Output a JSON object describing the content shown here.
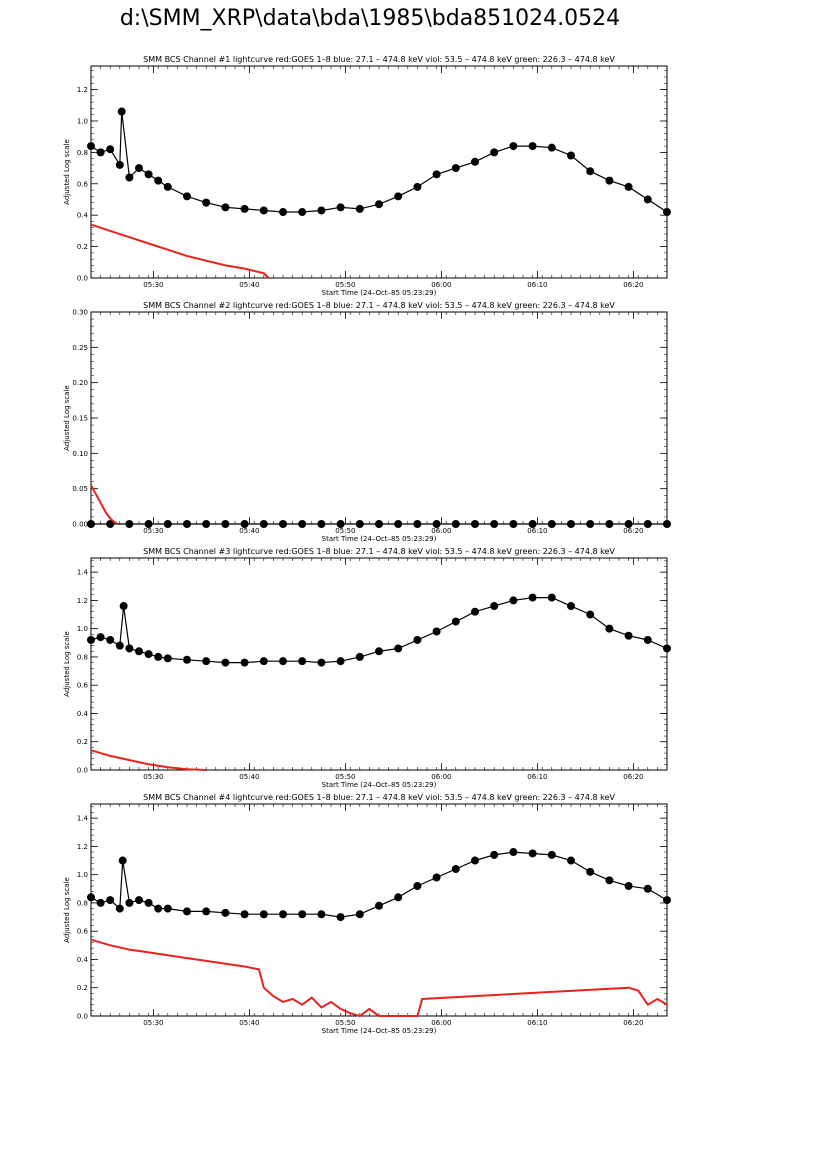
{
  "page": {
    "title": "d:\\SMM_XRP\\data\\bda\\1985\\bda851024.0524"
  },
  "colors": {
    "goes": "#e8231c",
    "data": "#000000",
    "axes": "#000000"
  },
  "chart_data": [
    {
      "type": "line",
      "title": "SMM BCS Channel #1 lightcurve  red:GOES 1–8  blue: 27.1 – 474.8 keV  viol: 53.5 – 474.8 keV  green: 226.3 – 474.8 keV",
      "xlabel": "Start Time (24–Oct–85 05:23:29)",
      "ylabel": "Adjusted Log scale",
      "x_unit": "minutes after 05:23:29",
      "xlim": [
        0,
        60
      ],
      "ylim": [
        0,
        1.35
      ],
      "x_ticks": [
        6.5,
        16.5,
        26.5,
        36.5,
        46.5,
        56.5
      ],
      "x_tick_labels": [
        "05:30",
        "05:40",
        "05:50",
        "06:00",
        "06:10",
        "06:20"
      ],
      "y_ticks": [
        0.0,
        0.2,
        0.4,
        0.6,
        0.8,
        1.0,
        1.2
      ],
      "y_tick_labels": [
        "0.0",
        "0.2",
        "0.4",
        "0.6",
        "0.8",
        "1.0",
        "1.2"
      ],
      "series": [
        {
          "style": "markers",
          "color": "#000000",
          "x": [
            0,
            1,
            2,
            3,
            3.2,
            4,
            5,
            6,
            7,
            8,
            10,
            12,
            14,
            16,
            18,
            20,
            22,
            24,
            26,
            28,
            30,
            32,
            34,
            36,
            38,
            40,
            42,
            44,
            46,
            48,
            50,
            52,
            54,
            56,
            58,
            60
          ],
          "y": [
            0.84,
            0.8,
            0.82,
            0.72,
            1.06,
            0.64,
            0.7,
            0.66,
            0.62,
            0.58,
            0.52,
            0.48,
            0.45,
            0.44,
            0.43,
            0.42,
            0.42,
            0.43,
            0.45,
            0.44,
            0.47,
            0.52,
            0.58,
            0.66,
            0.7,
            0.74,
            0.8,
            0.84,
            0.84,
            0.83,
            0.78,
            0.68,
            0.62,
            0.58,
            0.5,
            0.42
          ]
        },
        {
          "style": "line",
          "color": "#e8231c",
          "x": [
            0,
            2,
            4,
            6,
            8,
            10,
            12,
            14,
            16,
            18,
            18.5
          ],
          "y": [
            0.34,
            0.3,
            0.26,
            0.22,
            0.18,
            0.14,
            0.11,
            0.08,
            0.06,
            0.03,
            0.0
          ]
        }
      ]
    },
    {
      "type": "line",
      "title": "SMM BCS Channel #2 lightcurve  red:GOES 1–8  blue: 27.1 – 474.8 keV  viol: 53.5 – 474.8 keV  green: 226.3 – 474.8 keV",
      "xlabel": "Start Time (24–Oct–85 05:23:29)",
      "ylabel": "Adjusted Log scale",
      "x_unit": "minutes after 05:23:29",
      "xlim": [
        0,
        60
      ],
      "ylim": [
        0,
        0.3
      ],
      "x_ticks": [
        6.5,
        16.5,
        26.5,
        36.5,
        46.5,
        56.5
      ],
      "x_tick_labels": [
        "05:30",
        "05:40",
        "05:50",
        "06:00",
        "06:10",
        "06:20"
      ],
      "y_ticks": [
        0.0,
        0.05,
        0.1,
        0.15,
        0.2,
        0.25,
        0.3
      ],
      "y_tick_labels": [
        "0.00",
        "0.05",
        "0.10",
        "0.15",
        "0.20",
        "0.25",
        "0.30"
      ],
      "series": [
        {
          "style": "markers",
          "color": "#000000",
          "x": [
            0,
            2,
            4,
            6,
            8,
            10,
            12,
            14,
            16,
            18,
            20,
            22,
            24,
            26,
            28,
            30,
            32,
            34,
            36,
            38,
            40,
            42,
            44,
            46,
            48,
            50,
            52,
            54,
            56,
            58,
            60
          ],
          "y": [
            0,
            0,
            0,
            0,
            0,
            0,
            0,
            0,
            0,
            0,
            0,
            0,
            0,
            0,
            0,
            0,
            0,
            0,
            0,
            0,
            0,
            0,
            0,
            0,
            0,
            0,
            0,
            0,
            0,
            0,
            0
          ]
        },
        {
          "style": "line",
          "color": "#e8231c",
          "x": [
            0,
            0.4,
            0.8,
            1.2,
            1.6,
            2.0,
            2.4,
            2.8
          ],
          "y": [
            0.055,
            0.045,
            0.035,
            0.025,
            0.015,
            0.008,
            0.003,
            0.0
          ]
        }
      ]
    },
    {
      "type": "line",
      "title": "SMM BCS Channel #3 lightcurve  red:GOES 1–8  blue: 27.1 – 474.8 keV  viol: 53.5 – 474.8 keV  green: 226.3 – 474.8 keV",
      "xlabel": "Start Time (24–Oct–85 05:23:29)",
      "ylabel": "Adjusted Log scale",
      "x_unit": "minutes after 05:23:29",
      "xlim": [
        0,
        60
      ],
      "ylim": [
        0,
        1.5
      ],
      "x_ticks": [
        6.5,
        16.5,
        26.5,
        36.5,
        46.5,
        56.5
      ],
      "x_tick_labels": [
        "05:30",
        "05:40",
        "05:50",
        "06:00",
        "06:10",
        "06:20"
      ],
      "y_ticks": [
        0.0,
        0.2,
        0.4,
        0.6,
        0.8,
        1.0,
        1.2,
        1.4
      ],
      "y_tick_labels": [
        "0.0",
        "0.2",
        "0.4",
        "0.6",
        "0.8",
        "1.0",
        "1.2",
        "1.4"
      ],
      "series": [
        {
          "style": "markers",
          "color": "#000000",
          "x": [
            0,
            1,
            2,
            3,
            3.4,
            4,
            5,
            6,
            7,
            8,
            10,
            12,
            14,
            16,
            18,
            20,
            22,
            24,
            26,
            28,
            30,
            32,
            34,
            36,
            38,
            40,
            42,
            44,
            46,
            48,
            50,
            52,
            54,
            56,
            58,
            60
          ],
          "y": [
            0.92,
            0.94,
            0.92,
            0.88,
            1.16,
            0.86,
            0.84,
            0.82,
            0.8,
            0.79,
            0.78,
            0.77,
            0.76,
            0.76,
            0.77,
            0.77,
            0.77,
            0.76,
            0.77,
            0.8,
            0.84,
            0.86,
            0.92,
            0.98,
            1.05,
            1.12,
            1.16,
            1.2,
            1.22,
            1.22,
            1.16,
            1.1,
            1.0,
            0.95,
            0.92,
            0.86
          ]
        },
        {
          "style": "line",
          "color": "#e8231c",
          "x": [
            0,
            2,
            4,
            6,
            8,
            10,
            12
          ],
          "y": [
            0.14,
            0.1,
            0.07,
            0.04,
            0.02,
            0.006,
            0.0
          ]
        }
      ]
    },
    {
      "type": "line",
      "title": "SMM BCS Channel #4 lightcurve  red:GOES 1–8  blue: 27.1 – 474.8 keV  viol: 53.5 – 474.8 keV  green: 226.3 – 474.8 keV",
      "xlabel": "Start Time (24–Oct–85 05:23:29)",
      "ylabel": "Adjusted Log scale",
      "x_unit": "minutes after 05:23:29",
      "xlim": [
        0,
        60
      ],
      "ylim": [
        0,
        1.5
      ],
      "x_ticks": [
        6.5,
        16.5,
        26.5,
        36.5,
        46.5,
        56.5
      ],
      "x_tick_labels": [
        "05:30",
        "05:40",
        "05:50",
        "06:00",
        "06:10",
        "06:20"
      ],
      "y_ticks": [
        0.0,
        0.2,
        0.4,
        0.6,
        0.8,
        1.0,
        1.2,
        1.4
      ],
      "y_tick_labels": [
        "0.0",
        "0.2",
        "0.4",
        "0.6",
        "0.8",
        "1.0",
        "1.2",
        "1.4"
      ],
      "series": [
        {
          "style": "markers",
          "color": "#000000",
          "x": [
            0,
            1,
            2,
            3,
            3.3,
            4,
            5,
            6,
            7,
            8,
            10,
            12,
            14,
            16,
            18,
            20,
            22,
            24,
            26,
            28,
            30,
            32,
            34,
            36,
            38,
            40,
            42,
            44,
            46,
            48,
            50,
            52,
            54,
            56,
            58,
            60
          ],
          "y": [
            0.84,
            0.8,
            0.82,
            0.76,
            1.1,
            0.8,
            0.82,
            0.8,
            0.76,
            0.76,
            0.74,
            0.74,
            0.73,
            0.72,
            0.72,
            0.72,
            0.72,
            0.72,
            0.7,
            0.72,
            0.78,
            0.84,
            0.92,
            0.98,
            1.04,
            1.1,
            1.14,
            1.16,
            1.15,
            1.14,
            1.1,
            1.02,
            0.96,
            0.92,
            0.9,
            0.82
          ]
        },
        {
          "style": "line",
          "color": "#e8231c",
          "x": [
            0,
            2,
            4,
            6,
            8,
            10,
            12,
            14,
            16,
            17.5,
            18,
            19,
            20,
            21,
            22,
            23,
            24,
            25,
            26,
            27,
            28,
            29,
            30,
            31,
            32,
            33,
            34,
            34.5,
            56,
            57,
            58,
            59,
            60
          ],
          "y": [
            0.54,
            0.5,
            0.47,
            0.45,
            0.43,
            0.41,
            0.39,
            0.37,
            0.35,
            0.33,
            0.2,
            0.14,
            0.1,
            0.12,
            0.08,
            0.13,
            0.06,
            0.1,
            0.05,
            0.02,
            0.0,
            0.05,
            0.0,
            0.0,
            0.0,
            0.0,
            0.0,
            0.12,
            0.2,
            0.18,
            0.08,
            0.12,
            0.08
          ]
        }
      ]
    }
  ]
}
